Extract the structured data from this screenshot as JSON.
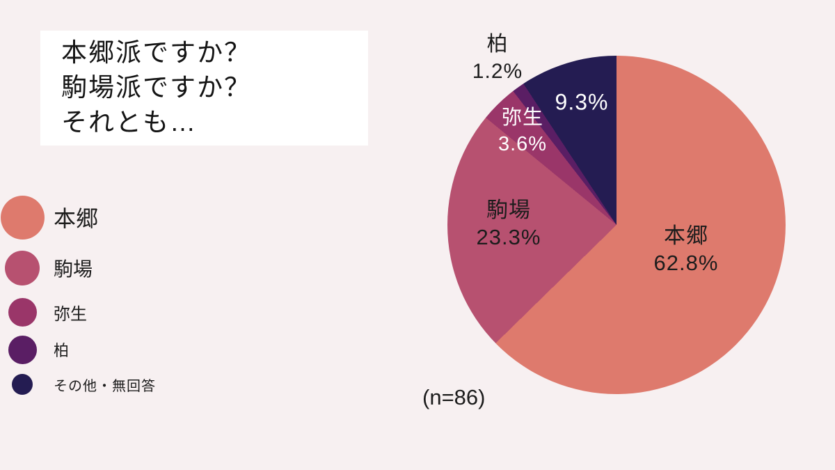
{
  "page": {
    "background": "#F7F0F1",
    "title_card": {
      "lines": [
        "本郷派ですか？",
        "駒場派ですか？",
        "それとも…"
      ]
    }
  },
  "chart_data": {
    "type": "pie",
    "title": "本郷派ですか？駒場派ですか？それとも…",
    "sample_size_label": "(n=86)",
    "n": 86,
    "start_angle_deg": 0,
    "direction": "clockwise",
    "legend_position": "left",
    "slices": [
      {
        "label": "本郷",
        "value": 62.8,
        "pct_label": "62.8%",
        "color": "#DE7A6D",
        "label_color": "dark"
      },
      {
        "label": "駒場",
        "value": 23.3,
        "pct_label": "23.3%",
        "color": "#B75170",
        "label_color": "dark"
      },
      {
        "label": "弥生",
        "value": 3.6,
        "pct_label": "3.6%",
        "color": "#9A3669",
        "label_color": "white"
      },
      {
        "label": "柏",
        "value": 1.2,
        "pct_label": "1.2%",
        "color": "#5A1E64",
        "label_color": "dark"
      },
      {
        "label": "その他・無回答",
        "value": 9.3,
        "pct_label": "9.3%",
        "color": "#241C52",
        "label_color": "white"
      }
    ]
  }
}
